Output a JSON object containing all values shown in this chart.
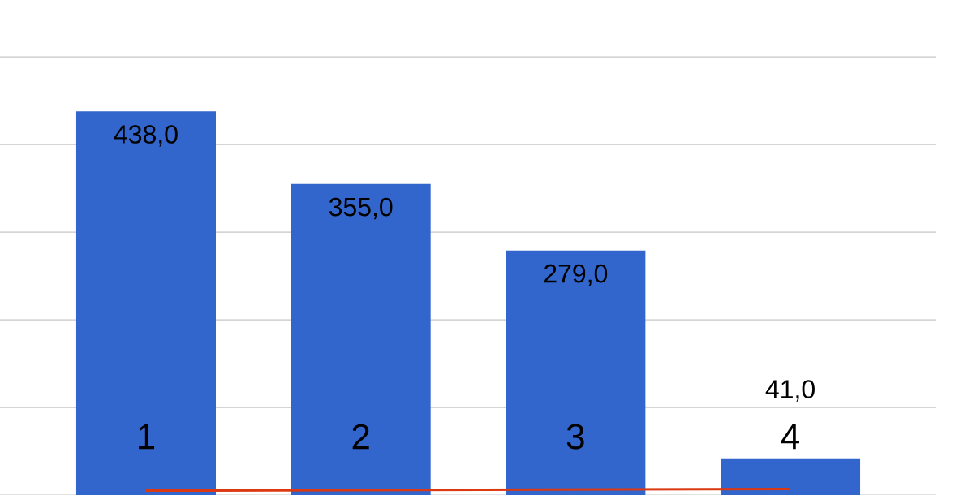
{
  "chart_data": {
    "type": "bar",
    "categories": [
      "1",
      "2",
      "3",
      "4"
    ],
    "values": [
      438,
      355,
      279,
      41
    ],
    "value_labels": [
      "438,0",
      "355,0",
      "279,0",
      "41,0"
    ],
    "color": "#3366cc",
    "series": [
      {
        "type": "line",
        "color": "#dc3912",
        "values": [
          5,
          null,
          null,
          7
        ]
      }
    ],
    "grid": "y"
  }
}
